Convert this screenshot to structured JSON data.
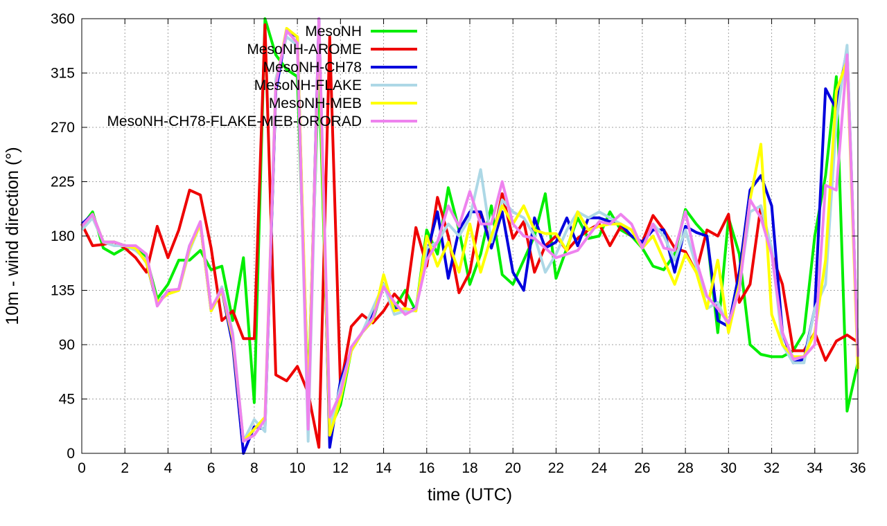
{
  "chart_data": {
    "type": "line",
    "title": "",
    "xlabel": "time (UTC)",
    "ylabel": "10m - wind direction (°)",
    "xlim": [
      0,
      36
    ],
    "ylim": [
      0,
      360
    ],
    "xticks": [
      0,
      2,
      4,
      6,
      8,
      10,
      12,
      14,
      16,
      18,
      20,
      22,
      24,
      26,
      28,
      30,
      32,
      34,
      36
    ],
    "yticks": [
      0,
      45,
      90,
      135,
      180,
      225,
      270,
      315,
      360
    ],
    "grid": true,
    "legend_position": "top-right",
    "x": [
      0,
      0.5,
      1,
      1.5,
      2,
      2.5,
      3,
      3.5,
      4,
      4.5,
      5,
      5.5,
      6,
      6.5,
      7,
      7.5,
      8,
      8.5,
      9,
      9.5,
      10,
      10.5,
      11,
      11.5,
      12,
      12.5,
      13,
      13.5,
      14,
      14.5,
      15,
      15.5,
      16,
      16.5,
      17,
      17.5,
      18,
      18.5,
      19,
      19.5,
      20,
      20.5,
      21,
      21.5,
      22,
      22.5,
      23,
      23.5,
      24,
      24.5,
      25,
      25.5,
      26,
      26.5,
      27,
      27.5,
      28,
      28.5,
      29,
      29.5,
      30,
      30.5,
      31,
      31.5,
      32,
      32.5,
      33,
      33.5,
      34,
      34.5,
      35,
      35.5,
      36
    ],
    "series": [
      {
        "name": "MesoNH",
        "color": "#00ee00",
        "values": [
          188,
          200,
          170,
          165,
          170,
          170,
          162,
          128,
          140,
          160,
          160,
          168,
          152,
          155,
          110,
          162,
          42,
          360,
          330,
          318,
          312,
          50,
          320,
          20,
          40,
          85,
          100,
          110,
          140,
          120,
          135,
          118,
          185,
          165,
          220,
          185,
          140,
          165,
          205,
          148,
          140,
          160,
          180,
          215,
          145,
          170,
          195,
          178,
          180,
          200,
          185,
          180,
          170,
          155,
          152,
          165,
          202,
          190,
          180,
          100,
          195,
          165,
          90,
          82,
          80,
          80,
          85,
          100,
          180,
          230,
          312,
          35,
          75
        ]
      },
      {
        "name": "MesoNH-AROME",
        "color": "#ee0000",
        "values": [
          190,
          172,
          173,
          175,
          170,
          162,
          150,
          188,
          162,
          185,
          218,
          214,
          170,
          110,
          118,
          95,
          95,
          355,
          65,
          60,
          72,
          50,
          5,
          345,
          55,
          105,
          115,
          108,
          118,
          132,
          122,
          187,
          155,
          212,
          180,
          133,
          150,
          200,
          172,
          215,
          178,
          192,
          150,
          172,
          180,
          168,
          178,
          185,
          190,
          172,
          188,
          180,
          175,
          197,
          185,
          170,
          167,
          150,
          185,
          180,
          198,
          125,
          140,
          205,
          165,
          140,
          85,
          85,
          100,
          77,
          93,
          98,
          92
        ]
      },
      {
        "name": "MesoNH-CH78",
        "color": "#0000dd",
        "values": [
          190,
          198,
          175,
          175,
          172,
          170,
          158,
          124,
          134,
          136,
          172,
          190,
          118,
          135,
          90,
          0,
          22,
          20,
          300,
          350,
          345,
          30,
          360,
          5,
          60,
          85,
          100,
          115,
          140,
          120,
          118,
          120,
          165,
          200,
          145,
          185,
          200,
          200,
          170,
          200,
          150,
          135,
          195,
          170,
          175,
          195,
          172,
          195,
          195,
          192,
          190,
          180,
          175,
          185,
          185,
          150,
          188,
          183,
          180,
          110,
          105,
          150,
          218,
          230,
          205,
          100,
          75,
          78,
          120,
          302,
          285,
          335,
          80
        ]
      },
      {
        "name": "MesoNH-FLAKE",
        "color": "#add8e6",
        "values": [
          185,
          195,
          175,
          172,
          172,
          168,
          160,
          125,
          132,
          135,
          168,
          190,
          118,
          138,
          100,
          10,
          28,
          18,
          310,
          345,
          338,
          10,
          345,
          20,
          55,
          85,
          100,
          120,
          140,
          115,
          118,
          118,
          170,
          175,
          190,
          180,
          195,
          235,
          175,
          210,
          200,
          195,
          180,
          150,
          165,
          185,
          200,
          195,
          200,
          195,
          190,
          185,
          170,
          190,
          180,
          160,
          185,
          155,
          120,
          125,
          105,
          140,
          200,
          205,
          170,
          90,
          75,
          75,
          120,
          140,
          275,
          338,
          80
        ]
      },
      {
        "name": "MesoNH-MEB",
        "color": "#ffff00",
        "values": [
          188,
          198,
          175,
          175,
          172,
          170,
          158,
          125,
          132,
          135,
          170,
          190,
          118,
          135,
          95,
          10,
          20,
          30,
          305,
          352,
          345,
          40,
          350,
          15,
          45,
          85,
          100,
          110,
          148,
          118,
          120,
          118,
          180,
          155,
          175,
          150,
          190,
          150,
          180,
          205,
          190,
          205,
          185,
          182,
          182,
          168,
          200,
          185,
          188,
          190,
          190,
          185,
          170,
          180,
          160,
          140,
          165,
          150,
          120,
          160,
          100,
          140,
          210,
          256,
          115,
          90,
          80,
          80,
          100,
          160,
          300,
          325,
          70
        ]
      },
      {
        "name": "MesoNH-CH78-FLAKE-MEB-ORORAD",
        "color": "#ee82ee",
        "values": [
          188,
          198,
          175,
          175,
          172,
          172,
          165,
          122,
          135,
          136,
          172,
          192,
          120,
          136,
          98,
          10,
          15,
          28,
          305,
          350,
          340,
          20,
          360,
          30,
          50,
          88,
          100,
          112,
          138,
          125,
          115,
          120,
          160,
          175,
          205,
          188,
          217,
          190,
          190,
          225,
          190,
          180,
          178,
          170,
          162,
          165,
          168,
          180,
          192,
          190,
          198,
          190,
          170,
          190,
          170,
          168,
          200,
          160,
          130,
          120,
          108,
          135,
          210,
          195,
          165,
          100,
          78,
          80,
          90,
          222,
          218,
          330,
          80
        ]
      }
    ]
  }
}
